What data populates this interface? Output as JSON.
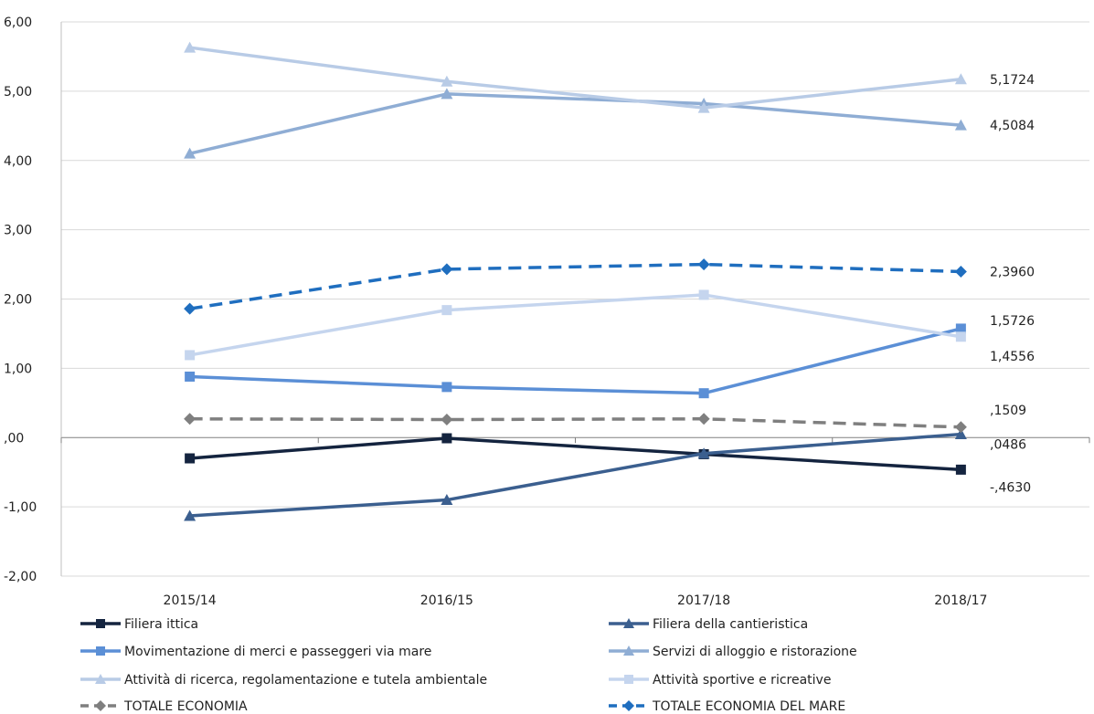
{
  "chart_data": {
    "type": "line",
    "categories": [
      "2015/14",
      "2016/15",
      "2017/18",
      "2018/17"
    ],
    "ylim": [
      -2,
      6
    ],
    "yticks": [
      "6,00",
      "5,00",
      "4,00",
      "3,00",
      "2,00",
      "1,00",
      ",00",
      "-1,00",
      "-2,00"
    ],
    "grid": true,
    "legend_position": "bottom",
    "series": [
      {
        "name": "Filiera ittica",
        "values": [
          -0.3,
          -0.01,
          -0.24,
          -0.463
        ],
        "color": "#14243f",
        "marker": "square",
        "dash": false,
        "end_label": "-,4630"
      },
      {
        "name": "Filiera della cantieristica",
        "values": [
          -1.13,
          -0.9,
          -0.23,
          0.0486
        ],
        "color": "#3b5f8f",
        "marker": "triangle",
        "dash": false,
        "end_label": ",0486"
      },
      {
        "name": "Movimentazione di merci e passeggeri via mare",
        "values": [
          0.88,
          0.73,
          0.64,
          1.5726
        ],
        "color": "#5b8fd6",
        "marker": "square",
        "dash": false,
        "end_label": "1,5726"
      },
      {
        "name": "Servizi di alloggio e ristorazione",
        "values": [
          4.1,
          4.96,
          4.82,
          4.5084
        ],
        "color": "#8fadd4",
        "marker": "triangle",
        "dash": false,
        "end_label": "4,5084"
      },
      {
        "name": "Attività di ricerca, regolamentazione e tutela ambientale",
        "values": [
          5.63,
          5.14,
          4.76,
          5.1724
        ],
        "color": "#b8cbe6",
        "marker": "triangle",
        "dash": false,
        "end_label": "5,1724"
      },
      {
        "name": "Attività sportive e ricreative",
        "values": [
          1.19,
          1.84,
          2.06,
          1.4556
        ],
        "color": "#c5d5ee",
        "marker": "square",
        "dash": false,
        "end_label": "1,4556"
      },
      {
        "name": "TOTALE ECONOMIA",
        "values": [
          0.27,
          0.26,
          0.27,
          0.1509
        ],
        "color": "#7f7f7f",
        "marker": "diamond",
        "dash": true,
        "end_label": ",1509"
      },
      {
        "name": "TOTALE ECONOMIA DEL MARE",
        "values": [
          1.86,
          2.43,
          2.5,
          2.396
        ],
        "color": "#1f6ebf",
        "marker": "diamond",
        "dash": true,
        "end_label": "2,3960"
      }
    ]
  }
}
